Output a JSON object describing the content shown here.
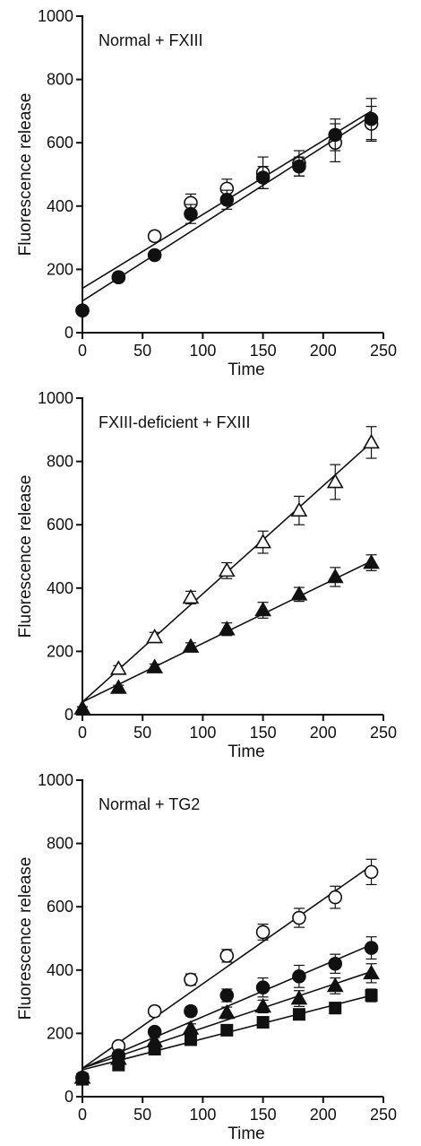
{
  "chart_data": [
    {
      "type": "scatter",
      "title": "Normal + FXIII",
      "xlabel": "Time",
      "ylabel": "Fluorescence release",
      "xlim": [
        0,
        250
      ],
      "ylim": [
        0,
        1000
      ],
      "xticks": [
        0,
        50,
        100,
        150,
        200,
        250
      ],
      "yticks": [
        0,
        200,
        400,
        600,
        800,
        1000
      ],
      "x": [
        0,
        30,
        60,
        90,
        120,
        150,
        180,
        210,
        240
      ],
      "series": [
        {
          "marker": "open-circle",
          "values": [
            70,
            175,
            305,
            410,
            455,
            505,
            535,
            600,
            660
          ],
          "errors": [
            10,
            15,
            15,
            28,
            30,
            50,
            40,
            60,
            55
          ],
          "fit": [
            140,
            700
          ]
        },
        {
          "marker": "filled-circle",
          "values": [
            70,
            175,
            245,
            375,
            420,
            490,
            525,
            625,
            675
          ],
          "errors": [
            10,
            12,
            12,
            30,
            30,
            35,
            30,
            50,
            65
          ],
          "fit": [
            100,
            685
          ]
        }
      ]
    },
    {
      "type": "scatter",
      "title": "FXIII-deficient + FXIII",
      "xlabel": "Time",
      "ylabel": "Fluorescence release",
      "xlim": [
        0,
        250
      ],
      "ylim": [
        0,
        1000
      ],
      "xticks": [
        0,
        50,
        100,
        150,
        200,
        250
      ],
      "yticks": [
        0,
        200,
        400,
        600,
        800,
        1000
      ],
      "x": [
        0,
        30,
        60,
        90,
        120,
        150,
        180,
        210,
        240
      ],
      "series": [
        {
          "marker": "open-triangle",
          "values": [
            20,
            145,
            245,
            370,
            455,
            545,
            645,
            735,
            860
          ],
          "errors": [
            5,
            10,
            15,
            20,
            25,
            35,
            45,
            55,
            50
          ],
          "fit": [
            40,
            860
          ]
        },
        {
          "marker": "filled-triangle",
          "values": [
            20,
            85,
            150,
            215,
            270,
            330,
            380,
            435,
            480
          ],
          "errors": [
            5,
            8,
            10,
            12,
            20,
            25,
            22,
            30,
            25
          ],
          "fit": [
            40,
            485
          ]
        }
      ]
    },
    {
      "type": "scatter",
      "title": "Normal + TG2",
      "xlabel": "Time",
      "ylabel": "Fluorescence release",
      "xlim": [
        0,
        250
      ],
      "ylim": [
        0,
        1000
      ],
      "xticks": [
        0,
        50,
        100,
        150,
        200,
        250
      ],
      "yticks": [
        0,
        200,
        400,
        600,
        800,
        1000
      ],
      "x": [
        0,
        30,
        60,
        90,
        120,
        150,
        180,
        210,
        240
      ],
      "series": [
        {
          "marker": "open-circle",
          "values": [
            60,
            160,
            270,
            370,
            445,
            520,
            565,
            630,
            710
          ],
          "errors": [
            8,
            12,
            15,
            18,
            20,
            25,
            30,
            35,
            40
          ],
          "fit": [
            90,
            730
          ]
        },
        {
          "marker": "filled-circle",
          "values": [
            60,
            130,
            205,
            270,
            320,
            345,
            380,
            420,
            470
          ],
          "errors": [
            8,
            10,
            12,
            15,
            20,
            30,
            35,
            30,
            35
          ],
          "fit": [
            90,
            480
          ]
        },
        {
          "marker": "filled-triangle",
          "values": [
            60,
            120,
            175,
            215,
            265,
            285,
            310,
            350,
            390
          ],
          "errors": [
            8,
            10,
            12,
            15,
            18,
            20,
            25,
            25,
            30
          ],
          "fit": [
            90,
            395
          ]
        },
        {
          "marker": "filled-square",
          "values": [
            55,
            100,
            150,
            180,
            210,
            235,
            260,
            280,
            320
          ],
          "errors": [
            5,
            8,
            10,
            12,
            12,
            15,
            15,
            18,
            20
          ],
          "fit": [
            85,
            320
          ]
        }
      ]
    }
  ]
}
